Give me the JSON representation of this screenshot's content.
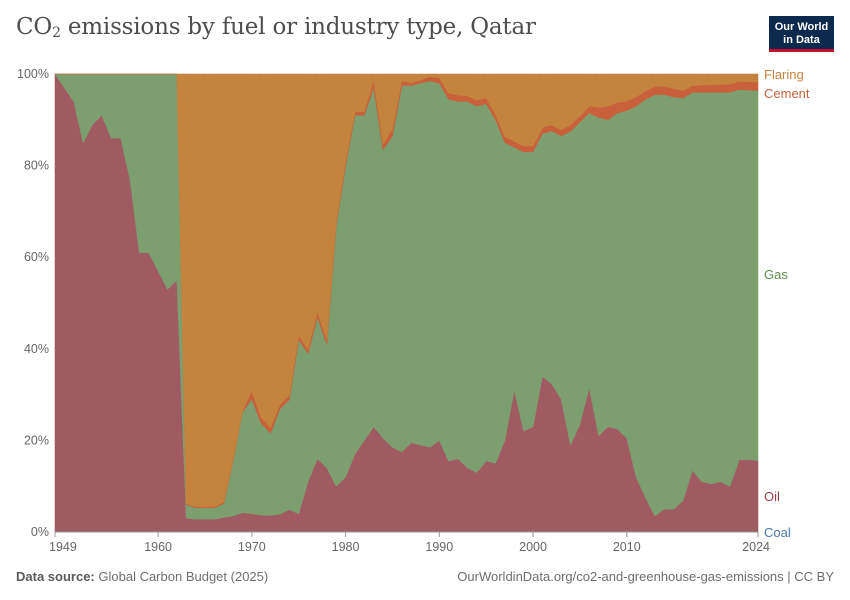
{
  "header": {
    "title_pre": "CO",
    "title_sub": "2",
    "title_post": " emissions by fuel or industry type, Qatar",
    "logo_line1": "Our World",
    "logo_line2": "in Data"
  },
  "footer": {
    "source_label": "Data source:",
    "source_value": "Global Carbon Budget (2025)",
    "url": "OurWorldinData.org/co2-and-greenhouse-gas-emissions | CC BY"
  },
  "colors": {
    "coal": "#4a76a8",
    "oil": "#a05a62",
    "gas": "#7d9e6e",
    "cement": "#c9603c",
    "flaring": "#c4843e"
  },
  "chart_data": {
    "type": "area",
    "stacked": true,
    "normalized": true,
    "title": "CO₂ emissions by fuel or industry type, Qatar",
    "xlim": [
      1949,
      2024
    ],
    "ylim": [
      0,
      100
    ],
    "x_ticks": [
      1949,
      1960,
      1970,
      1980,
      1990,
      2000,
      2010,
      2024
    ],
    "y_ticks": [
      0,
      20,
      40,
      60,
      80,
      100
    ],
    "y_tick_labels": [
      "0%",
      "20%",
      "40%",
      "60%",
      "80%",
      "100%"
    ],
    "x": [
      1949,
      1950,
      1951,
      1952,
      1953,
      1954,
      1955,
      1956,
      1957,
      1958,
      1959,
      1960,
      1961,
      1962,
      1963,
      1964,
      1965,
      1966,
      1967,
      1968,
      1969,
      1970,
      1971,
      1972,
      1973,
      1974,
      1975,
      1976,
      1977,
      1978,
      1979,
      1980,
      1981,
      1982,
      1983,
      1984,
      1985,
      1986,
      1987,
      1988,
      1989,
      1990,
      1991,
      1992,
      1993,
      1994,
      1995,
      1996,
      1997,
      1998,
      1999,
      2000,
      2001,
      2002,
      2003,
      2004,
      2005,
      2006,
      2007,
      2008,
      2009,
      2010,
      2011,
      2012,
      2013,
      2014,
      2015,
      2016,
      2017,
      2018,
      2019,
      2020,
      2021,
      2022,
      2023,
      2024
    ],
    "series": [
      {
        "name": "Coal",
        "values": [
          0,
          0,
          0,
          0,
          0,
          0,
          0,
          0,
          0,
          0,
          0,
          0,
          0,
          0,
          0,
          0,
          0,
          0,
          0,
          0,
          0,
          0,
          0,
          0,
          0,
          0,
          0,
          0,
          0,
          0,
          0,
          0,
          0,
          0,
          0,
          0,
          0,
          0,
          0,
          0,
          0,
          0,
          0,
          0,
          0,
          0,
          0,
          0,
          0,
          0,
          0,
          0,
          0,
          0,
          0,
          0,
          0,
          0,
          0,
          0,
          0,
          0,
          0,
          0,
          0,
          0,
          0,
          0,
          0,
          0,
          0,
          0,
          0,
          0,
          0,
          0
        ]
      },
      {
        "name": "Oil",
        "values": [
          100,
          97,
          94,
          85,
          89,
          91,
          86,
          86,
          77,
          61,
          61,
          57,
          53,
          55,
          3,
          2.8,
          2.8,
          2.8,
          3.2,
          3.5,
          4.2,
          4,
          3.7,
          3.6,
          3.9,
          4.9,
          4,
          11,
          16,
          14,
          10,
          12,
          17,
          20,
          23,
          20.5,
          18.5,
          17.5,
          19.5,
          19,
          18.5,
          20,
          15.5,
          16,
          14,
          13,
          15.5,
          15,
          20,
          31,
          22,
          23,
          34,
          32.5,
          29,
          19,
          23.5,
          31.5,
          21,
          23,
          22.5,
          20.5,
          12,
          7.5,
          3.5,
          5,
          5,
          6.8,
          13.5,
          11,
          10.5,
          11,
          10,
          15.8,
          15.8,
          15.6
        ]
      },
      {
        "name": "Gas",
        "values": [
          0,
          3,
          6,
          15,
          11,
          9,
          14,
          14,
          23,
          39,
          39,
          43,
          47,
          45,
          3,
          2.5,
          2.5,
          2.5,
          3,
          12,
          22,
          25,
          20,
          18,
          23,
          24,
          38,
          28,
          31,
          27,
          57,
          68,
          74,
          71,
          74,
          63,
          68,
          80,
          78,
          79,
          80,
          78,
          79,
          78,
          80,
          80,
          78,
          75,
          65,
          53,
          61,
          60,
          53,
          55.5,
          57.5,
          68.5,
          66,
          60,
          69.5,
          67,
          69,
          71.5,
          81,
          87,
          92,
          90.5,
          90,
          88,
          82.5,
          85,
          85.5,
          85,
          86.7,
          80.8,
          80.7,
          80.8
        ]
      },
      {
        "name": "Cement",
        "values": [
          0,
          0,
          0,
          0,
          0,
          0,
          0,
          0,
          0,
          0,
          0,
          0,
          0,
          0,
          0.2,
          0.2,
          0.2,
          0.2,
          0.3,
          0.3,
          0.3,
          1.8,
          1.3,
          1.2,
          1,
          0.9,
          0.9,
          0.9,
          1,
          1,
          0.8,
          1,
          0.7,
          0.8,
          1.7,
          1.2,
          1.5,
          1,
          0.6,
          0.7,
          0.9,
          1.2,
          1.3,
          1.4,
          1.2,
          1.3,
          1.3,
          1.2,
          1.3,
          1.3,
          1.3,
          1.3,
          1.3,
          1.3,
          1.3,
          1.4,
          1.3,
          1.5,
          2.2,
          3,
          2.3,
          2.1,
          2,
          1.8,
          1.8,
          1.8,
          1.8,
          1.6,
          1.4,
          1.6,
          1.7,
          1.7,
          1.8,
          1.8,
          1.8,
          1.9
        ]
      },
      {
        "name": "Flaring",
        "values": [
          0,
          0,
          0,
          0,
          0,
          0,
          0,
          0,
          0,
          0,
          0,
          0,
          0,
          0,
          93.8,
          94.5,
          94.5,
          94.5,
          93.5,
          84.2,
          73.5,
          69.2,
          75,
          77.2,
          72.1,
          70.2,
          57.1,
          60.1,
          52,
          58,
          32.2,
          19,
          8.3,
          8.2,
          1.3,
          15.3,
          12,
          1.5,
          1.9,
          1.3,
          0.6,
          0.8,
          4.2,
          4.6,
          4.8,
          5.7,
          5.2,
          8.8,
          13.7,
          14.7,
          15.7,
          15.7,
          11.7,
          11.2,
          12.2,
          11.1,
          9.2,
          7,
          7.3,
          7,
          6.2,
          5.9,
          5,
          3.7,
          2.7,
          2.7,
          3.2,
          3.6,
          2.6,
          2.4,
          2.3,
          2.3,
          2.2,
          1.6,
          1.7,
          1.7
        ]
      }
    ],
    "legend": [
      {
        "name": "Flaring",
        "label": "Flaring"
      },
      {
        "name": "Cement",
        "label": "Cement"
      },
      {
        "name": "Gas",
        "label": "Gas"
      },
      {
        "name": "Oil",
        "label": "Oil"
      },
      {
        "name": "Coal",
        "label": "Coal"
      }
    ]
  }
}
